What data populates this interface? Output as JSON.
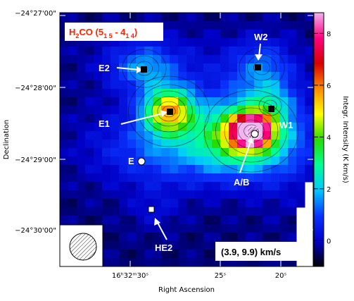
{
  "chart_data": {
    "type": "heatmap",
    "title": "H2CO (5(1,5) - 4(1,4))",
    "title_parts": {
      "main": "H",
      "sub1": "2",
      "mid": "CO (5",
      "sub2": "1 5",
      "mid2": " - 4",
      "sub3": "1 4",
      "end": ")"
    },
    "xlabel": "Right Ascension",
    "ylabel": "Declination",
    "colorbar_label": "Integr. Intensity (K km/s)",
    "x_ticks": [
      "16ʰ32ᵐ30ˢ",
      "25ˢ",
      "20ˢ"
    ],
    "y_ticks": [
      "−24°27'00\"",
      "−24°28'00\"",
      "−24°29'00\"",
      "−24°30'00\""
    ],
    "colorbar_ticks": [
      0,
      2,
      4,
      6,
      8
    ],
    "colorbar_range": [
      -1,
      8.8
    ],
    "velocity_range_text": "(3.9, 9.9) km/s",
    "colors": {
      "accent_title": "#ff2200",
      "colormap": [
        "#000000",
        "#0000c8",
        "#0a33ff",
        "#00c8ff",
        "#00ff96",
        "#28dc00",
        "#ffff00",
        "#ff8c00",
        "#d70000",
        "#ff0080",
        "#f0b4f0"
      ]
    },
    "sources": [
      {
        "name": "E2",
        "ra_sec": 28.3,
        "dec_sec": -27.7,
        "marker": "square"
      },
      {
        "name": "W2",
        "ra_sec": 21.3,
        "dec_sec": -27.6,
        "marker": "square"
      },
      {
        "name": "E1",
        "ra_sec": 26.8,
        "dec_sec": -28.3,
        "marker": "square"
      },
      {
        "name": "W1",
        "ra_sec": 20.6,
        "dec_sec": -28.3,
        "marker": "square"
      },
      {
        "name": "A/B",
        "ra_sec": 22.9,
        "dec_sec": -28.6,
        "marker": "circle"
      },
      {
        "name": "E",
        "ra_sec": 28.0,
        "dec_sec": -29.0,
        "marker": "circle"
      },
      {
        "name": "HE2",
        "ra_sec": 27.7,
        "dec_sec": -29.5,
        "marker": "square"
      }
    ],
    "beam_shown": true
  }
}
